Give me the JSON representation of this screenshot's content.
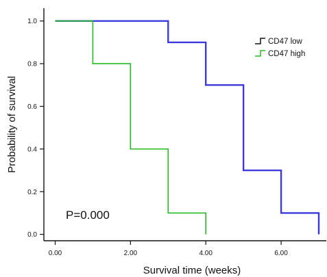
{
  "chart_data": {
    "type": "line",
    "style": "step",
    "xlabel": "Survival time (weeks)",
    "ylabel": "Probability of survival",
    "xlim": [
      -0.3,
      7.2
    ],
    "ylim": [
      -0.03,
      1.06
    ],
    "x_ticks": [
      0,
      2,
      4,
      6
    ],
    "x_tick_labels": [
      "0.00",
      "2.00",
      "4.00",
      "6.00"
    ],
    "y_ticks": [
      0,
      0.2,
      0.4,
      0.6,
      0.8,
      1.0
    ],
    "y_tick_labels": [
      "0.0",
      "0.2",
      "0.4",
      "0.6",
      "0.8",
      "1.0"
    ],
    "grid": false,
    "legend_position": "top-right",
    "annotation": "P=0.000",
    "series": [
      {
        "name": "CD47 low",
        "color": "#3a3adc",
        "x": [
          0,
          3,
          4,
          5,
          6,
          7,
          7
        ],
        "y": [
          1.0,
          0.9,
          0.7,
          0.3,
          0.1,
          0.0,
          0.0
        ],
        "legend_color": "#111111"
      },
      {
        "name": "CD47 high",
        "color": "#22bb22",
        "x": [
          0,
          1,
          2,
          3,
          4,
          4
        ],
        "y": [
          1.0,
          0.8,
          0.4,
          0.1,
          0.0,
          0.0
        ],
        "legend_color": "#22bb22"
      }
    ]
  }
}
